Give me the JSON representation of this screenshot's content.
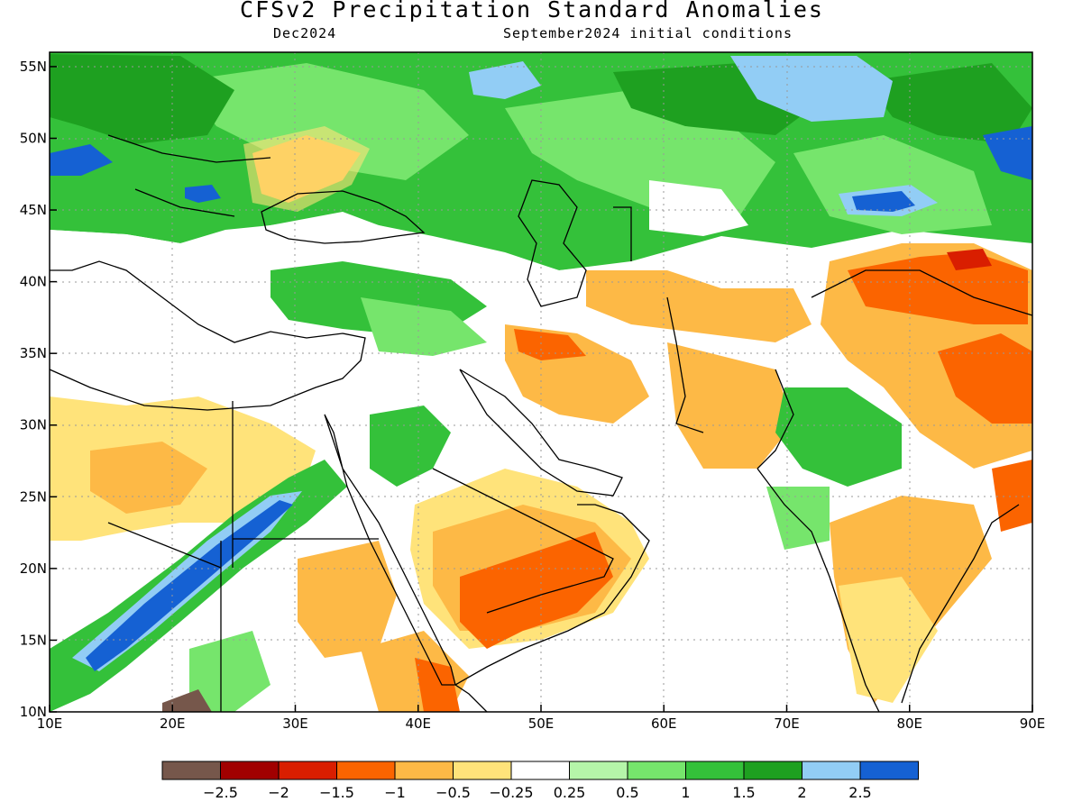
{
  "title": "CFSv2 Precipitation Standard Anomalies",
  "valid_month": "Dec2024",
  "initial_conditions": "September2024 initial conditions",
  "map": {
    "lon_range": [
      10,
      90
    ],
    "lat_range": [
      10,
      56
    ],
    "x_ticks": [
      10,
      20,
      30,
      40,
      50,
      60,
      70,
      80,
      90
    ],
    "x_tick_labels": [
      "10E",
      "20E",
      "30E",
      "40E",
      "50E",
      "60E",
      "70E",
      "80E",
      "90E"
    ],
    "y_ticks": [
      10,
      15,
      20,
      25,
      30,
      35,
      40,
      45,
      50,
      55
    ],
    "y_tick_labels": [
      "10N",
      "15N",
      "20N",
      "25N",
      "30N",
      "35N",
      "40N",
      "45N",
      "50N",
      "55N"
    ],
    "grid": "dotted"
  },
  "colorbar": {
    "colors": [
      "#76574b",
      "#a10000",
      "#d91e00",
      "#fb6400",
      "#fdb946",
      "#ffe37a",
      "#ffffff",
      "#b5f5a9",
      "#76e56c",
      "#34c13a",
      "#1ea020",
      "#92cdf5",
      "#1561d3"
    ],
    "labels": [
      "−2.5",
      "−2",
      "−1.5",
      "−1",
      "−0.5",
      "−0.25",
      "0.25",
      "0.5",
      "1",
      "1.5",
      "2",
      "2.5"
    ]
  },
  "colors": {
    "very_dry": "#fb6400",
    "dry": "#fdb946",
    "slightly_dry": "#ffe37a",
    "slightly_wet": "#b5f5a9",
    "wet": "#76e56c",
    "wetter": "#34c13a",
    "very_wet": "#1ea020",
    "extreme_wet": "#92cdf5",
    "extreme_wet_2": "#1561d3",
    "extreme_dry": "#a10000",
    "brown": "#76574b"
  }
}
